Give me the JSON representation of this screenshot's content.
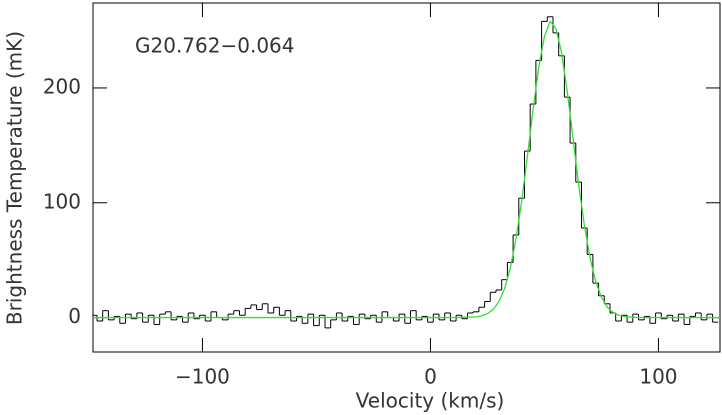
{
  "chart_data": {
    "type": "line",
    "annotation": "G20.762−0.064",
    "xlabel": "Velocity (km/s)",
    "ylabel": "Brightness Temperature (mK)",
    "xlim": [
      -148,
      127
    ],
    "ylim": [
      -30,
      274
    ],
    "xticks": [
      {
        "value": -100,
        "label": "−100"
      },
      0,
      100
    ],
    "yticks": [
      0,
      100,
      200
    ],
    "series": [
      {
        "color": "#000000",
        "step": true,
        "x": [
          -147.5,
          -145,
          -142.5,
          -140,
          -137.5,
          -135,
          -132.5,
          -130,
          -127.5,
          -125,
          -122.5,
          -120,
          -117.5,
          -115,
          -112.5,
          -110,
          -107.5,
          -105,
          -102.5,
          -100,
          -97.5,
          -95,
          -92.5,
          -90,
          -87.5,
          -85,
          -82.5,
          -80,
          -77.5,
          -75,
          -72.5,
          -70,
          -67.5,
          -65,
          -62.5,
          -60,
          -57.5,
          -55,
          -52.5,
          -50,
          -47.5,
          -45,
          -42.5,
          -40,
          -37.5,
          -35,
          -32.5,
          -30,
          -27.5,
          -25,
          -22.5,
          -20,
          -17.5,
          -15,
          -12.5,
          -10,
          -7.5,
          -5,
          -2.5,
          0,
          2.5,
          5,
          7.5,
          10,
          12.5,
          15,
          17.5,
          20,
          22.5,
          25,
          27.5,
          30,
          32.5,
          35,
          37.5,
          40,
          42.5,
          45,
          47.5,
          50,
          52.5,
          55,
          57.5,
          60,
          62.5,
          65,
          67.5,
          70,
          72.5,
          75,
          77.5,
          80,
          82.5,
          85,
          87.5,
          90,
          92.5,
          95,
          97.5,
          100,
          102.5,
          105,
          107.5,
          110,
          112.5,
          115,
          117.5,
          120,
          122.5,
          125
        ],
        "values": [
          2,
          -3,
          6,
          -2,
          1,
          -5,
          3,
          -1,
          4,
          -4,
          2,
          -6,
          3,
          5,
          -2,
          1,
          -4,
          4,
          -1,
          2,
          -3,
          5,
          0,
          -2,
          3,
          6,
          2,
          8,
          11,
          7,
          12,
          4,
          9,
          2,
          6,
          -3,
          1,
          -5,
          3,
          -7,
          2,
          -9,
          -2,
          4,
          -3,
          1,
          -6,
          3,
          -1,
          2,
          -4,
          5,
          0,
          -3,
          3,
          -5,
          6,
          -2,
          1,
          -4,
          3,
          -2,
          4,
          -3,
          2,
          -1,
          4,
          5,
          9,
          14,
          22,
          24,
          33,
          48,
          72,
          104,
          145,
          186,
          224,
          258,
          262,
          248,
          228,
          192,
          152,
          118,
          78,
          55,
          30,
          19,
          12,
          4,
          -3,
          2,
          -4,
          3,
          -2,
          1,
          -5,
          4,
          -1,
          2,
          -3,
          3,
          -6,
          1,
          4,
          -2,
          3,
          -4
        ]
      },
      {
        "color": "#33dd33",
        "x": [
          -148,
          10,
          20,
          22.5,
          25,
          27.5,
          30,
          32.5,
          35,
          37.5,
          40,
          42.5,
          45,
          47.5,
          50,
          52.5,
          55,
          57.5,
          60,
          62.5,
          65,
          67.5,
          70,
          72.5,
          75,
          77.5,
          80,
          82.5,
          85,
          90,
          100,
          127
        ],
        "values": [
          0,
          0,
          0.6,
          1.5,
          3.4,
          7.0,
          13.8,
          25.1,
          42.8,
          68.2,
          101.2,
          140,
          181,
          218,
          245,
          258,
          252,
          231,
          197,
          157,
          116,
          80.5,
          52,
          31.4,
          17.7,
          9.2,
          4.5,
          2.1,
          0.9,
          0.1,
          0,
          0
        ]
      }
    ]
  }
}
